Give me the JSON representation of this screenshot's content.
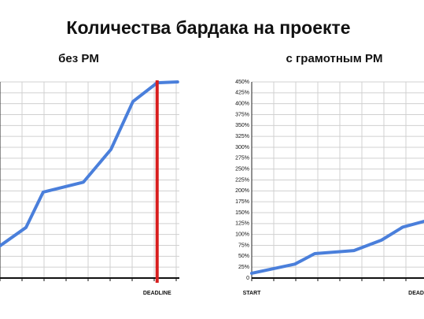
{
  "title": "Количества бардака на проекте",
  "chart_data": [
    {
      "type": "line",
      "title": "без PM",
      "series": [
        {
          "color": "#4a7fdb",
          "x": [
            0,
            1.18,
            1.96,
            3.79,
            5.04,
            6.04,
            7.14,
            8.07
          ],
          "values": [
            74,
            116,
            197,
            220,
            295,
            405,
            448,
            450
          ]
        }
      ],
      "xlim": [
        0,
        8.15
      ],
      "xticks": [
        {
          "value": 7.14,
          "label": "DEADLINE"
        }
      ],
      "ylim": [
        0,
        450
      ],
      "yticks": [
        0,
        25,
        50,
        75,
        100,
        125,
        150,
        175,
        200,
        225,
        250,
        275,
        300,
        325,
        350,
        375,
        400,
        425,
        450
      ],
      "show_ytick_labels": false,
      "grid": true,
      "deadline_line": {
        "color": "#d81e1e"
      }
    },
    {
      "type": "line",
      "title": "с грамотным PM",
      "series": [
        {
          "color": "#4a7fdb",
          "x": [
            0,
            1.96,
            2.86,
            4.64,
            5.89,
            6.86,
            7.82
          ],
          "values": [
            11,
            32,
            56,
            63,
            87,
            117,
            130
          ]
        }
      ],
      "xlim": [
        0,
        8.07
      ],
      "xticks": [
        {
          "value": 0,
          "label": "START"
        },
        {
          "value": 7.75,
          "label": "DEADLINE"
        }
      ],
      "ylim": [
        0,
        450
      ],
      "yticks": [
        0,
        {
          "value": 25,
          "label": "25%"
        },
        {
          "value": 50,
          "label": "50%"
        },
        {
          "value": 75,
          "label": "75%"
        },
        {
          "value": 100,
          "label": "100%"
        },
        {
          "value": 125,
          "label": "125%"
        },
        {
          "value": 150,
          "label": "150%"
        },
        {
          "value": 175,
          "label": "175%"
        },
        {
          "value": 200,
          "label": "200%"
        },
        {
          "value": 225,
          "label": "225%"
        },
        {
          "value": 250,
          "label": "250%"
        },
        {
          "value": 275,
          "label": "275%"
        },
        {
          "value": 300,
          "label": "300%"
        },
        {
          "value": 325,
          "label": "325%"
        },
        {
          "value": 350,
          "label": "350%"
        },
        {
          "value": 375,
          "label": "375%"
        },
        {
          "value": 400,
          "label": "400%"
        },
        {
          "value": 425,
          "label": "425%"
        },
        {
          "value": 450,
          "label": "450%"
        }
      ],
      "show_ytick_labels": true,
      "grid": true
    }
  ]
}
